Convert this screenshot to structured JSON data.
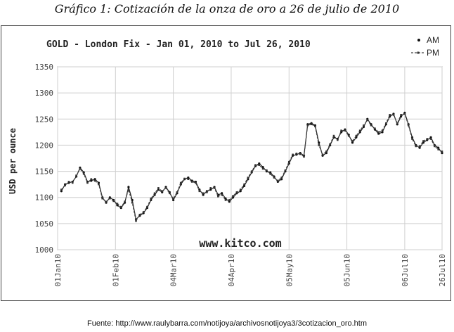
{
  "caption": "Gráfico 1: Cotización de la onza de oro a 26 de julio de 2010",
  "source": "Fuente: http://www.raulybarra.com/notijoya/archivosnotijoya3/3cotizacion_oro.htm",
  "chart_data": {
    "type": "line",
    "title": "GOLD - London Fix - Jan 01, 2010 to Jul 26, 2010",
    "xlabel": "",
    "ylabel": "USD per ounce",
    "ylim": [
      1000,
      1350
    ],
    "yticks": [
      1000,
      1050,
      1100,
      1150,
      1200,
      1250,
      1300,
      1350
    ],
    "grid": true,
    "legend_position": "top-right",
    "watermark": "www.kitco.com",
    "x_ticks": [
      {
        "label": "01Jan10",
        "day": 0
      },
      {
        "label": "01Feb10",
        "day": 31
      },
      {
        "label": "04Mar10",
        "day": 62
      },
      {
        "label": "04Apr10",
        "day": 93
      },
      {
        "label": "05May10",
        "day": 124
      },
      {
        "label": "05Jun10",
        "day": 155
      },
      {
        "label": "06Jul10",
        "day": 186
      },
      {
        "label": "26Jul10",
        "day": 206
      }
    ],
    "series": [
      {
        "name": "AM",
        "x": [
          2,
          4,
          6,
          8,
          10,
          12,
          14,
          16,
          18,
          20,
          22,
          24,
          26,
          28,
          30,
          32,
          34,
          36,
          38,
          40,
          42,
          44,
          46,
          48,
          50,
          52,
          54,
          56,
          58,
          60,
          62,
          64,
          66,
          68,
          70,
          72,
          74,
          76,
          78,
          80,
          82,
          84,
          86,
          88,
          90,
          92,
          94,
          96,
          98,
          100,
          102,
          104,
          106,
          108,
          110,
          112,
          114,
          116,
          118,
          120,
          122,
          124,
          126,
          128,
          130,
          132,
          134,
          136,
          138,
          140,
          142,
          144,
          146,
          148,
          150,
          152,
          154,
          156,
          158,
          160,
          162,
          164,
          166,
          168,
          170,
          172,
          174,
          176,
          178,
          180,
          182,
          184,
          186,
          188,
          190,
          192,
          194,
          196,
          198,
          200,
          202,
          204,
          206
        ],
        "values": [
          1112,
          1125,
          1128,
          1130,
          1140,
          1157,
          1148,
          1130,
          1132,
          1135,
          1128,
          1100,
          1090,
          1100,
          1095,
          1085,
          1080,
          1090,
          1120,
          1095,
          1058,
          1065,
          1070,
          1080,
          1095,
          1105,
          1115,
          1110,
          1120,
          1110,
          1095,
          1108,
          1125,
          1135,
          1138,
          1132,
          1130,
          1115,
          1105,
          1112,
          1115,
          1120,
          1105,
          1108,
          1098,
          1092,
          1100,
          1108,
          1112,
          1122,
          1135,
          1148,
          1160,
          1165,
          1158,
          1150,
          1148,
          1140,
          1130,
          1135,
          1150,
          1165,
          1180,
          1182,
          1185,
          1180,
          1240,
          1242,
          1238,
          1205,
          1180,
          1185,
          1200,
          1215,
          1212,
          1225,
          1230,
          1220,
          1205,
          1215,
          1225,
          1235,
          1250,
          1240,
          1230,
          1222,
          1225,
          1240,
          1255,
          1260,
          1240,
          1255,
          1262,
          1240,
          1215,
          1200,
          1195,
          1205,
          1210,
          1215,
          1200,
          1195,
          1185
        ]
      },
      {
        "name": "PM",
        "x": [
          2,
          4,
          6,
          8,
          10,
          12,
          14,
          16,
          18,
          20,
          22,
          24,
          26,
          28,
          30,
          32,
          34,
          36,
          38,
          40,
          42,
          44,
          46,
          48,
          50,
          52,
          54,
          56,
          58,
          60,
          62,
          64,
          66,
          68,
          70,
          72,
          74,
          76,
          78,
          80,
          82,
          84,
          86,
          88,
          90,
          92,
          94,
          96,
          98,
          100,
          102,
          104,
          106,
          108,
          110,
          112,
          114,
          116,
          118,
          120,
          122,
          124,
          126,
          128,
          130,
          132,
          134,
          136,
          138,
          140,
          142,
          144,
          146,
          148,
          150,
          152,
          154,
          156,
          158,
          160,
          162,
          164,
          166,
          168,
          170,
          172,
          174,
          176,
          178,
          180,
          182,
          184,
          186,
          188,
          190,
          192,
          194,
          196,
          198,
          200,
          202,
          204,
          206
        ],
        "values": [
          1115,
          1123,
          1130,
          1128,
          1142,
          1155,
          1145,
          1128,
          1135,
          1132,
          1125,
          1098,
          1092,
          1098,
          1093,
          1088,
          1082,
          1092,
          1115,
          1090,
          1055,
          1067,
          1072,
          1082,
          1098,
          1108,
          1118,
          1112,
          1118,
          1108,
          1098,
          1110,
          1128,
          1136,
          1135,
          1130,
          1128,
          1112,
          1108,
          1110,
          1118,
          1118,
          1102,
          1105,
          1095,
          1095,
          1103,
          1110,
          1115,
          1125,
          1138,
          1150,
          1162,
          1162,
          1155,
          1152,
          1145,
          1138,
          1132,
          1138,
          1152,
          1168,
          1182,
          1184,
          1183,
          1178,
          1238,
          1240,
          1236,
          1200,
          1182,
          1188,
          1202,
          1218,
          1210,
          1228,
          1228,
          1218,
          1208,
          1218,
          1228,
          1238,
          1248,
          1238,
          1232,
          1225,
          1228,
          1242,
          1258,
          1258,
          1242,
          1258,
          1260,
          1238,
          1212,
          1198,
          1198,
          1208,
          1212,
          1212,
          1198,
          1192,
          1188
        ]
      }
    ]
  }
}
